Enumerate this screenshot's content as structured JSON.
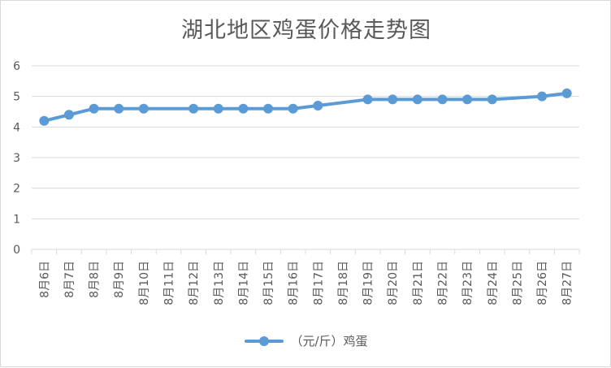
{
  "chart_data": {
    "type": "line",
    "title": "湖北地区鸡蛋价格走势图",
    "categories": [
      "8月6日",
      "8月7日",
      "8月8日",
      "8月9日",
      "8月10日",
      "8月11日",
      "8月12日",
      "8月13日",
      "8月14日",
      "8月15日",
      "8月16日",
      "8月17日",
      "8月18日",
      "8月19日",
      "8月20日",
      "8月21日",
      "8月22日",
      "8月23日",
      "8月24日",
      "8月25日",
      "8月26日",
      "8月27日"
    ],
    "series": [
      {
        "name": "（元/斤）鸡蛋",
        "values": [
          4.2,
          4.4,
          4.6,
          4.6,
          4.6,
          null,
          4.6,
          4.6,
          4.6,
          4.6,
          4.6,
          4.7,
          null,
          4.9,
          4.9,
          4.9,
          4.9,
          4.9,
          4.9,
          null,
          5.0,
          5.1
        ]
      }
    ],
    "ylim": [
      0,
      6
    ],
    "yticks": [
      0,
      1,
      2,
      3,
      4,
      5,
      6
    ],
    "grid": true,
    "legend_position": "bottom",
    "colors": {
      "line": "#5b9bd5",
      "grid": "#d9d9d9",
      "text": "#595959"
    }
  }
}
